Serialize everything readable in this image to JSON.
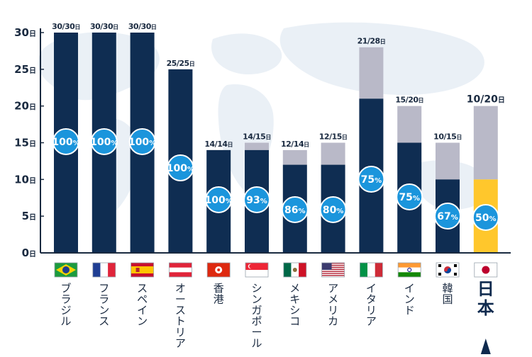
{
  "chart_data": {
    "type": "bar",
    "y_unit": "日",
    "y_ticks": [
      0,
      5,
      10,
      15,
      20,
      25,
      30
    ],
    "ylim": [
      0,
      30
    ],
    "grid": false,
    "categories": [
      "ブラジル",
      "フランス",
      "スペイン",
      "オーストリア",
      "香港",
      "シンガポール",
      "メキシコ",
      "アメリカ",
      "イタリア",
      "インド",
      "韓国",
      "日本"
    ],
    "flags": [
      "brazil-flag-icon",
      "france-flag-icon",
      "spain-flag-icon",
      "austria-flag-icon",
      "hong-kong-flag-icon",
      "singapore-flag-icon",
      "mexico-flag-icon",
      "usa-flag-icon",
      "italy-flag-icon",
      "india-flag-icon",
      "korea-flag-icon",
      "japan-flag-icon"
    ],
    "highlight_index": 11,
    "series": [
      {
        "values": [
          30,
          30,
          30,
          25,
          14,
          14,
          12,
          12,
          21,
          15,
          10,
          10
        ]
      },
      {
        "values": [
          30,
          30,
          30,
          25,
          14,
          15,
          14,
          15,
          28,
          20,
          15,
          20
        ]
      }
    ],
    "value_labels": [
      "30/30",
      "30/30",
      "30/30",
      "25/25",
      "14/14",
      "14/15",
      "12/14",
      "12/15",
      "21/28",
      "15/20",
      "10/15",
      "10/20"
    ],
    "percent_labels": [
      "100",
      "100",
      "100",
      "100",
      "100",
      "93",
      "86",
      "80",
      "75",
      "75",
      "67",
      "50"
    ],
    "percent_unit": "%",
    "colors": {
      "filled": "#0f2d52",
      "remainder": "#b9b9c8",
      "highlight_filled": "#ffc72c",
      "circle": "#1b95dc",
      "circle_stroke": "#ffffff",
      "axis": "#1a2a40",
      "map": "#d8e4ee"
    }
  }
}
